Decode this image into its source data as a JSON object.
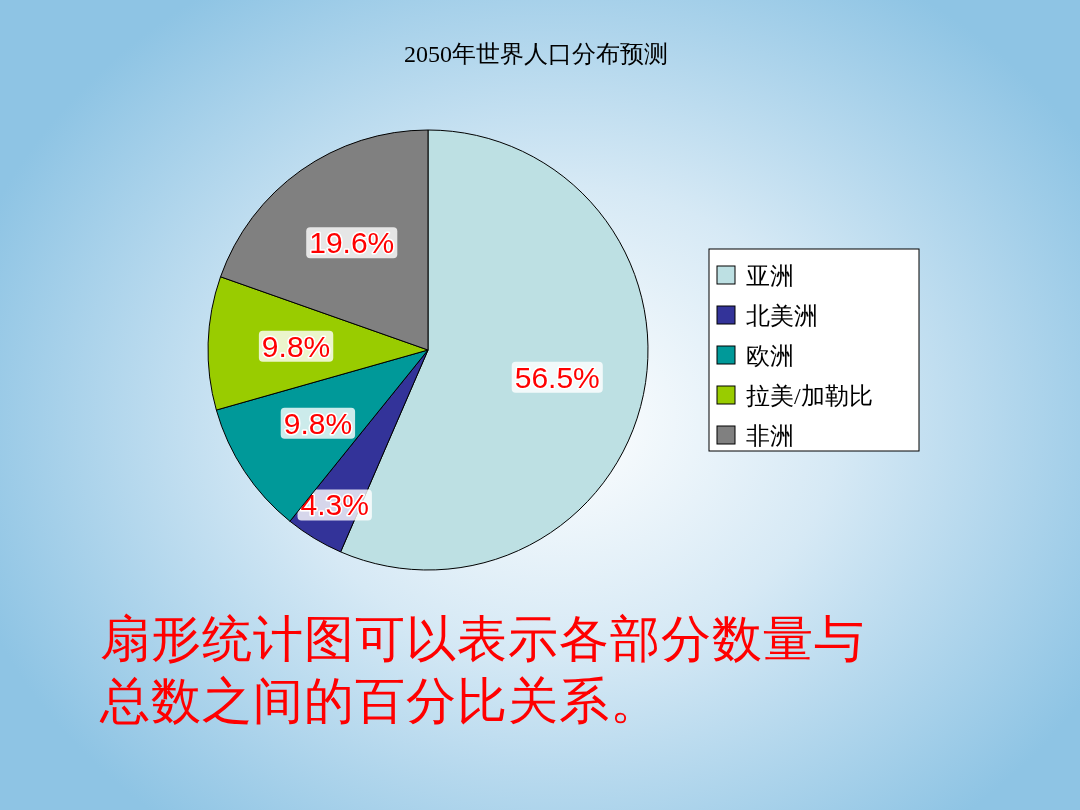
{
  "chart_data": {
    "type": "pie",
    "title": "2050年世界人口分布预测",
    "categories": [
      "亚洲",
      "北美洲",
      "欧洲",
      "拉美/加勒比",
      "非洲"
    ],
    "values": [
      56.5,
      4.3,
      9.8,
      9.8,
      19.6
    ],
    "colors": [
      "#bde0e3",
      "#333399",
      "#009999",
      "#99cc00",
      "#808080"
    ],
    "value_labels": [
      "56.5%",
      "4.3%",
      "9.8%",
      "9.8%",
      "19.6%"
    ],
    "legend": "right",
    "annotations": [
      "扇形统计图可以表示各部分数量与总数之间的百分比关系。"
    ]
  }
}
